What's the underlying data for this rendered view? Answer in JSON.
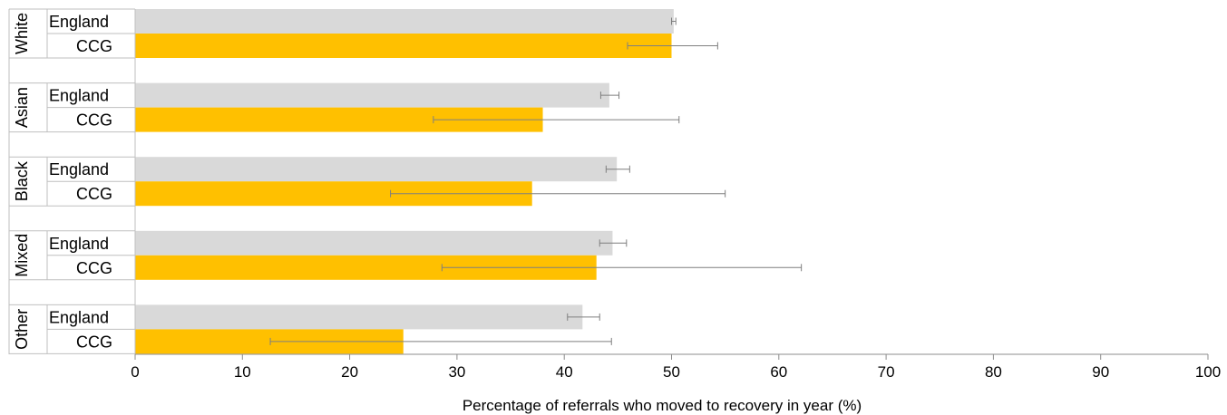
{
  "chart_data": {
    "type": "bar",
    "orientation": "horizontal",
    "xlabel": "Percentage of referrals who moved to recovery in year (%)",
    "xlim": [
      0,
      100
    ],
    "xticks": [
      0,
      10,
      20,
      30,
      40,
      50,
      60,
      70,
      80,
      90,
      100
    ],
    "grid": false,
    "colors": {
      "England": "#d9d9d9",
      "CCG": "#ffc000",
      "error_bar": "#7f7f7f"
    },
    "groups": [
      {
        "label": "White",
        "bars": [
          {
            "label": "England",
            "value": 50.2,
            "ci": [
              50.0,
              50.4
            ]
          },
          {
            "label": "CCG",
            "value": 50.0,
            "ci": [
              45.9,
              54.3
            ]
          }
        ]
      },
      {
        "label": "Asian",
        "bars": [
          {
            "label": "England",
            "value": 44.2,
            "ci": [
              43.4,
              45.1
            ]
          },
          {
            "label": "CCG",
            "value": 38.0,
            "ci": [
              27.8,
              50.7
            ]
          }
        ]
      },
      {
        "label": "Black",
        "bars": [
          {
            "label": "England",
            "value": 44.9,
            "ci": [
              43.9,
              46.1
            ]
          },
          {
            "label": "CCG",
            "value": 37.0,
            "ci": [
              23.8,
              55.0
            ]
          }
        ]
      },
      {
        "label": "Mixed",
        "bars": [
          {
            "label": "England",
            "value": 44.5,
            "ci": [
              43.3,
              45.8
            ]
          },
          {
            "label": "CCG",
            "value": 43.0,
            "ci": [
              28.6,
              62.1
            ]
          }
        ]
      },
      {
        "label": "Other",
        "bars": [
          {
            "label": "England",
            "value": 41.7,
            "ci": [
              40.3,
              43.3
            ]
          },
          {
            "label": "CCG",
            "value": 25.0,
            "ci": [
              12.6,
              44.4
            ]
          }
        ]
      }
    ]
  }
}
